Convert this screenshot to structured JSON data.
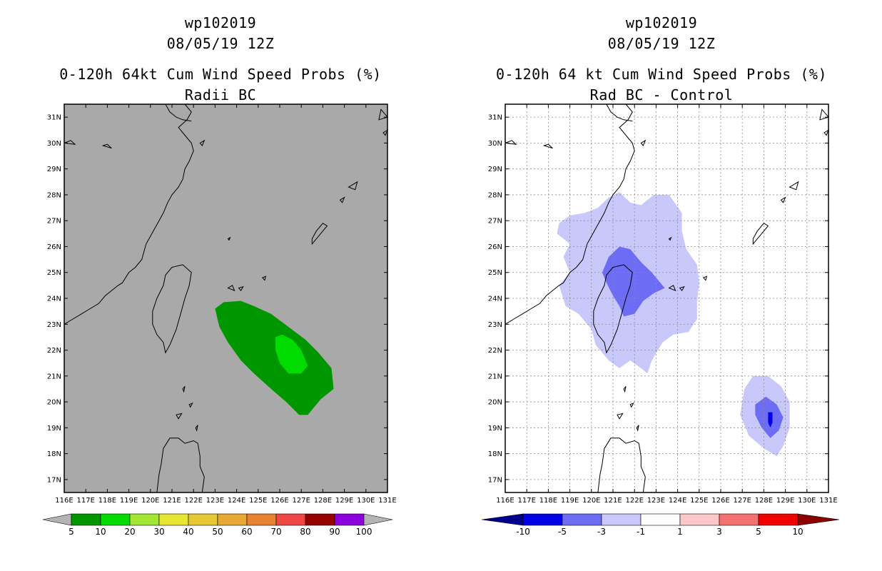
{
  "left": {
    "title_id": "wp102019",
    "title_date": "08/05/19 12Z",
    "title_main": "0-120h 64kt Cum Wind Speed Probs (%)",
    "title_sub": "Radii BC",
    "background_color": "#a9a9a9",
    "colorbar": {
      "labels": [
        "5",
        "10",
        "20",
        "30",
        "40",
        "50",
        "60",
        "70",
        "80",
        "90",
        "100"
      ],
      "colors": [
        "#009600",
        "#00dc00",
        "#a0e632",
        "#e6e632",
        "#e6c832",
        "#e6a832",
        "#e68232",
        "#f04646",
        "#960000",
        "#8c00dc"
      ]
    },
    "shaded_contours": [
      {
        "level": "5-10",
        "color": "#009600"
      },
      {
        "level": "10-20",
        "color": "#00dc00"
      }
    ]
  },
  "right": {
    "title_id": "wp102019",
    "title_date": "08/05/19 12Z",
    "title_main": "0-120h 64 kt Cum Wind Speed Probs (%)",
    "title_sub": "Rad BC - Control",
    "background_color": "#ffffff",
    "colorbar": {
      "labels": [
        "-10",
        "-5",
        "-3",
        "-1",
        "1",
        "3",
        "5",
        "10"
      ],
      "colors": [
        "#0000e6",
        "#6c6cf5",
        "#c8c8fa",
        "#ffffff",
        "#fac8c8",
        "#f57070",
        "#f00000"
      ],
      "end_low": "#00008c",
      "end_high": "#8c0000"
    },
    "shaded_contours": [
      {
        "level": "-3 to -1",
        "color": "#c8c8fa"
      },
      {
        "level": "-5 to -3",
        "color": "#6c6cf5"
      },
      {
        "level": "-10 to -5",
        "color": "#0000e6"
      }
    ]
  },
  "axes": {
    "lat_labels": [
      "31N",
      "30N",
      "29N",
      "28N",
      "27N",
      "26N",
      "25N",
      "24N",
      "23N",
      "22N",
      "21N",
      "20N",
      "19N",
      "18N",
      "17N"
    ],
    "lon_labels": [
      "116E",
      "117E",
      "118E",
      "119E",
      "120E",
      "121E",
      "122E",
      "123E",
      "124E",
      "125E",
      "126E",
      "127E",
      "128E",
      "129E",
      "130E",
      "131E"
    ]
  },
  "coast_color": "#000000",
  "grid_color": "#8c8c8c"
}
